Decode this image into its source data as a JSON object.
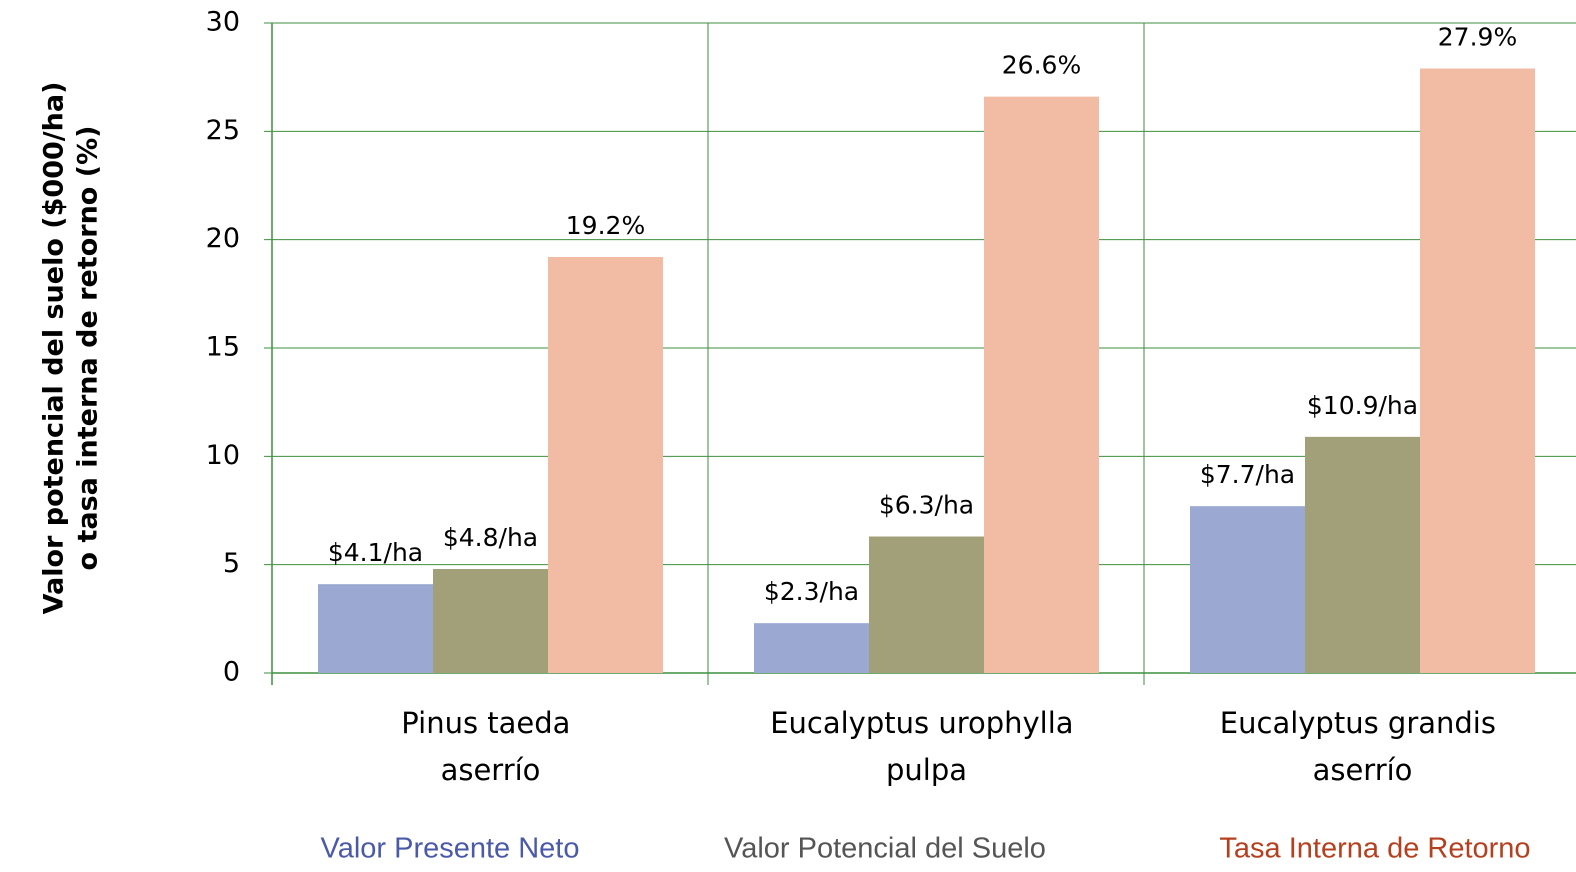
{
  "chart_data": {
    "type": "bar",
    "ylabel": [
      "Valor potencial del suelo ($000/ha)",
      "o tasa interna de retorno (%)"
    ],
    "categories": [
      "Pinus taeda aserrío",
      "Eucalyptus urophylla pulpa",
      "Eucalyptus grandis aserrío"
    ],
    "series": [
      {
        "name": "Valor Presente Neto",
        "color": "#9aa8d2",
        "label_color": "#4a5aa8",
        "values": [
          4.1,
          2.3,
          7.7
        ],
        "value_labels": [
          "$4.1/ha",
          "$2.3/ha",
          "$7.7/ha"
        ]
      },
      {
        "name": "Valor Potencial del Suelo",
        "color": "#a1a079",
        "label_color": "#555555",
        "values": [
          4.8,
          6.3,
          10.9
        ],
        "value_labels": [
          "$4.8/ha",
          "$6.3/ha",
          "$10.9/ha"
        ]
      },
      {
        "name": "Tasa Interna de Retorno",
        "color": "#f2bba4",
        "label_color": "#b5401f",
        "values": [
          19.2,
          26.6,
          27.9
        ],
        "value_labels": [
          "19.2%",
          "26.6%",
          "27.9%"
        ]
      }
    ],
    "ylim": [
      0,
      30
    ],
    "yticks": [
      0,
      5,
      10,
      15,
      20,
      25,
      30
    ],
    "grid": true
  }
}
